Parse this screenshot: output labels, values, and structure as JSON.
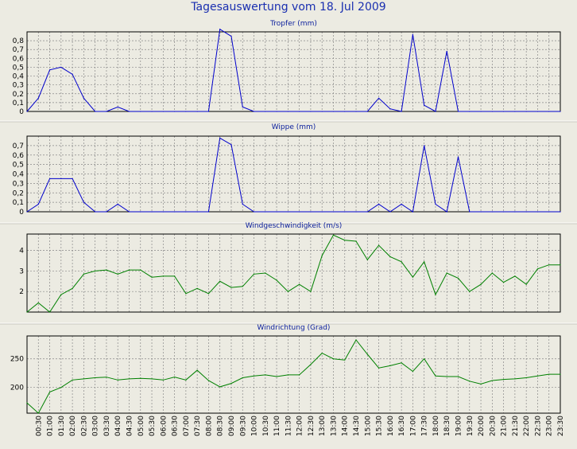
{
  "title": "Tagesauswertung vom 18. Jul 2009",
  "colors": {
    "background": "#ecebe2",
    "title": "#1a2fb0",
    "rain": "#0000cc",
    "wind": "#008000",
    "grid": "#888888"
  },
  "x_labels": [
    "00:30",
    "01:00",
    "01:30",
    "02:00",
    "02:30",
    "03:00",
    "03:30",
    "04:00",
    "04:30",
    "05:00",
    "05:30",
    "06:00",
    "06:30",
    "07:00",
    "07:30",
    "08:00",
    "08:30",
    "09:00",
    "09:30",
    "10:00",
    "10:30",
    "11:00",
    "11:30",
    "12:00",
    "12:30",
    "13:00",
    "13:30",
    "14:00",
    "14:30",
    "15:00",
    "15:30",
    "16:00",
    "16:30",
    "17:00",
    "17:30",
    "18:00",
    "18:30",
    "19:00",
    "19:30",
    "20:00",
    "20:30",
    "21:00",
    "21:30",
    "22:00",
    "22:30",
    "23:00",
    "23:30"
  ],
  "chart_data": [
    {
      "type": "line",
      "title": "Tropfer (mm)",
      "ylim": [
        0,
        0.9
      ],
      "yticks": [
        0,
        0.1,
        0.2,
        0.3,
        0.4,
        0.5,
        0.6,
        0.7,
        0.8
      ],
      "ytick_labels": [
        "0",
        "0,1",
        "0,2",
        "0,3",
        "0,4",
        "0,5",
        "0,6",
        "0,7",
        "0,8"
      ],
      "grid": true,
      "color": "#0000cc",
      "values": [
        0,
        0.15,
        0.47,
        0.5,
        0.42,
        0.15,
        0,
        0,
        0.05,
        0,
        0,
        0,
        0,
        0,
        0,
        0,
        0,
        0.93,
        0.85,
        0.05,
        0,
        0,
        0,
        0,
        0,
        0,
        0,
        0,
        0,
        0,
        0,
        0.15,
        0.03,
        0,
        0.87,
        0.07,
        0,
        0.68,
        0,
        0,
        0,
        0,
        0,
        0,
        0,
        0,
        0,
        0
      ]
    },
    {
      "type": "line",
      "title": "Wippe (mm)",
      "ylim": [
        0,
        0.8
      ],
      "yticks": [
        0,
        0.1,
        0.2,
        0.3,
        0.4,
        0.5,
        0.6,
        0.7
      ],
      "ytick_labels": [
        "0",
        "0,1",
        "0,2",
        "0,3",
        "0,4",
        "0,5",
        "0,6",
        "0,7"
      ],
      "grid": true,
      "color": "#0000cc",
      "values": [
        0,
        0.08,
        0.35,
        0.35,
        0.35,
        0.1,
        0,
        0,
        0.08,
        0,
        0,
        0,
        0,
        0,
        0,
        0,
        0,
        0.78,
        0.71,
        0.08,
        0,
        0,
        0,
        0,
        0,
        0,
        0,
        0,
        0,
        0,
        0,
        0.08,
        0,
        0.08,
        0,
        0.7,
        0.08,
        0,
        0.58,
        0,
        0,
        0,
        0,
        0,
        0,
        0,
        0,
        0
      ]
    },
    {
      "type": "line",
      "title": "Windgeschwindigkeit (m/s)",
      "ylim": [
        1,
        4.8
      ],
      "yticks": [
        2,
        3,
        4
      ],
      "ytick_labels": [
        "2",
        "3",
        "4"
      ],
      "grid": true,
      "color": "#008000",
      "values": [
        1.0,
        1.45,
        1.0,
        1.85,
        2.15,
        2.85,
        3.0,
        3.05,
        2.85,
        3.05,
        3.05,
        2.7,
        2.75,
        2.75,
        1.9,
        2.15,
        1.9,
        2.5,
        2.2,
        2.25,
        2.85,
        2.9,
        2.55,
        2.0,
        2.35,
        2.0,
        3.75,
        4.75,
        4.5,
        4.45,
        3.55,
        4.25,
        3.7,
        3.45,
        2.7,
        3.45,
        1.85,
        2.9,
        2.65,
        2.0,
        2.35,
        2.9,
        2.45,
        2.75,
        2.35,
        3.1,
        3.3,
        3.3
      ]
    },
    {
      "type": "line",
      "title": "Windrichtung (Grad)",
      "ylim": [
        155,
        290
      ],
      "yticks": [
        200,
        250
      ],
      "ytick_labels": [
        "200",
        "250"
      ],
      "grid": true,
      "color": "#008000",
      "values": [
        173,
        155,
        192,
        200,
        213,
        215,
        217,
        218,
        213,
        215,
        216,
        215,
        213,
        218,
        213,
        230,
        212,
        201,
        207,
        217,
        220,
        222,
        219,
        222,
        222,
        240,
        260,
        250,
        248,
        283,
        258,
        234,
        238,
        243,
        228,
        250,
        220,
        219,
        219,
        211,
        206,
        212,
        214,
        215,
        217,
        220,
        223,
        223
      ]
    }
  ]
}
